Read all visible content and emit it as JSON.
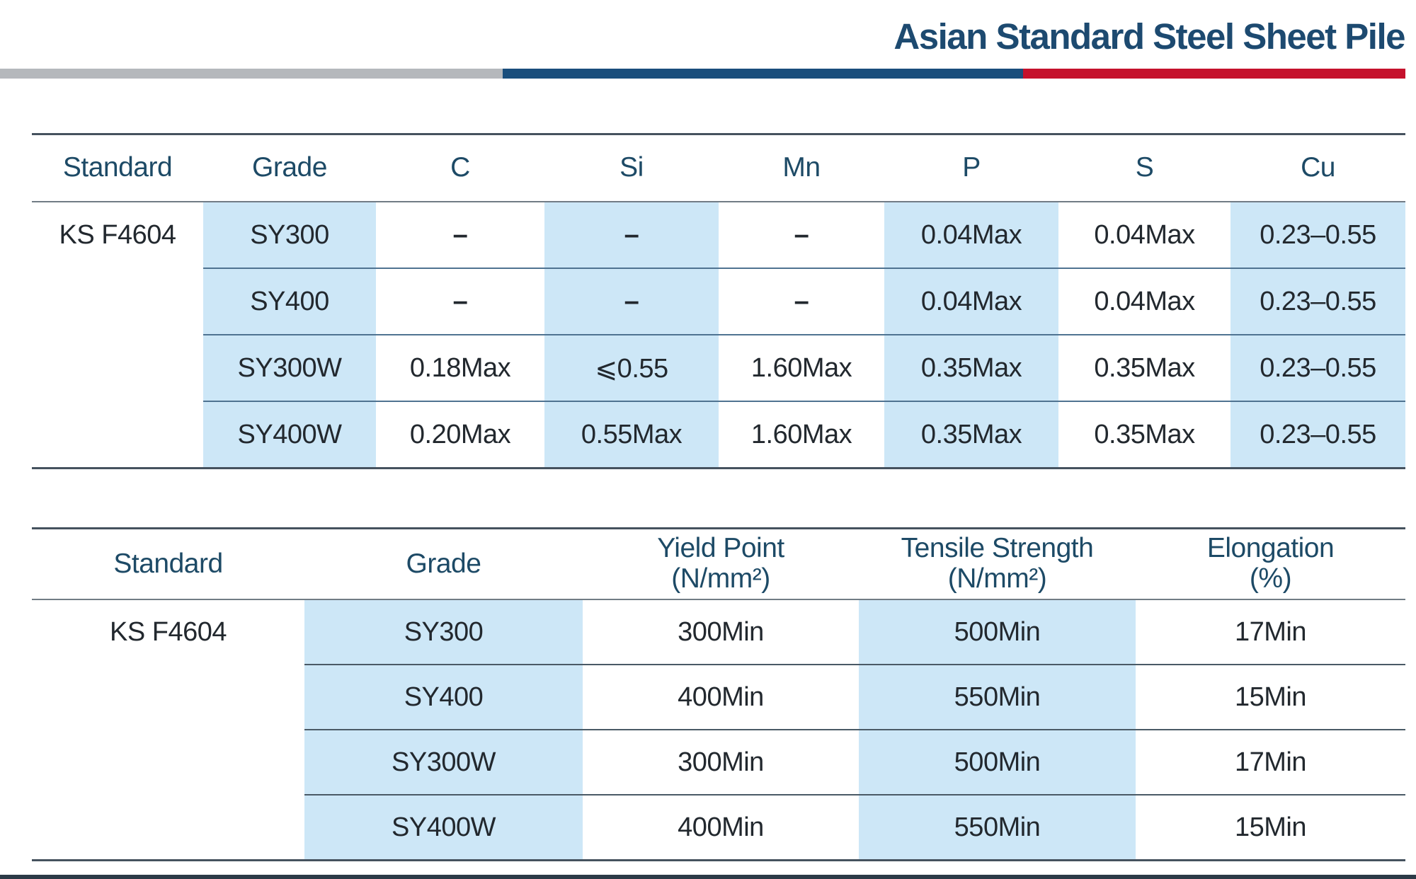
{
  "title": "Asian Standard Steel Sheet Pile",
  "colors": {
    "title_navy": "#1d4a70",
    "bar_gray": "#b5b8bc",
    "bar_navy": "#1a4e7c",
    "bar_red": "#c5112c",
    "cell_blue": "#cde7f7",
    "header_text": "#1d4a66",
    "body_text": "#22282e"
  },
  "chemical_table": {
    "standard": "KS F4604",
    "columns": [
      "Standard",
      "Grade",
      "C",
      "Si",
      "Mn",
      "P",
      "S",
      "Cu"
    ],
    "rows": [
      [
        "SY300",
        "–",
        "–",
        "–",
        "0.04Max",
        "0.04Max",
        "0.23–0.55"
      ],
      [
        "SY400",
        "–",
        "–",
        "–",
        "0.04Max",
        "0.04Max",
        "0.23–0.55"
      ],
      [
        "SY300W",
        "0.18Max",
        "⩽0.55",
        "1.60Max",
        "0.35Max",
        "0.35Max",
        "0.23–0.55"
      ],
      [
        "SY400W",
        "0.20Max",
        "0.55Max",
        "1.60Max",
        "0.35Max",
        "0.35Max",
        "0.23–0.55"
      ]
    ]
  },
  "mechanical_table": {
    "standard": "KS F4604",
    "columns": [
      {
        "line1": "Standard",
        "line2": ""
      },
      {
        "line1": "Grade",
        "line2": ""
      },
      {
        "line1": "Yield Point",
        "line2": "(N/mm²)"
      },
      {
        "line1": "Tensile Strength",
        "line2": "(N/mm²)"
      },
      {
        "line1": "Elongation",
        "line2": "(%)"
      }
    ],
    "rows": [
      [
        "SY300",
        "300Min",
        "500Min",
        "17Min"
      ],
      [
        "SY400",
        "400Min",
        "550Min",
        "15Min"
      ],
      [
        "SY300W",
        "300Min",
        "500Min",
        "17Min"
      ],
      [
        "SY400W",
        "400Min",
        "550Min",
        "15Min"
      ]
    ]
  }
}
